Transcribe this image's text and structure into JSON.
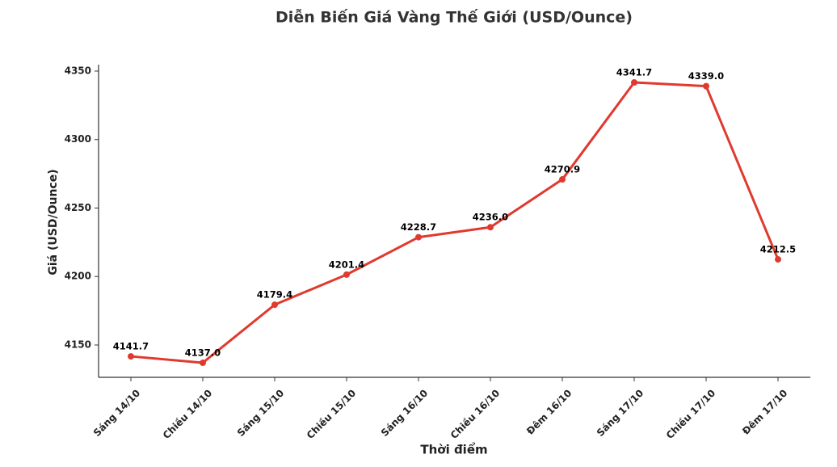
{
  "chart_data": {
    "type": "line",
    "title": "Diễn Biến Giá Vàng Thế Giới (USD/Ounce)",
    "x_label": "Thời điểm",
    "y_label": "Giá (USD/Ounce)",
    "categories": [
      "Sáng 14/10",
      "Chiều 14/10",
      "Sáng 15/10",
      "Chiều 15/10",
      "Sáng 16/10",
      "Chiều 16/10",
      "Đêm 16/10",
      "Sáng 17/10",
      "Chiều 17/10",
      "Đêm 17/10"
    ],
    "series": [
      {
        "color": "#e03a2f",
        "values": [
          4141.7,
          4137.0,
          4179.4,
          4201.4,
          4228.7,
          4236.0,
          4270.9,
          4341.7,
          4339.0,
          4212.5
        ],
        "value_labels": [
          "4141.7",
          "4137.0",
          "4179.4",
          "4201.4",
          "4228.7",
          "4236.0",
          "4270.9",
          "4341.7",
          "4339.0",
          "4212.5"
        ]
      }
    ],
    "ylim": [
      4126.4,
      4354.7
    ],
    "yticks": [
      4150,
      4200,
      4250,
      4300,
      4350
    ],
    "grid": false
  }
}
